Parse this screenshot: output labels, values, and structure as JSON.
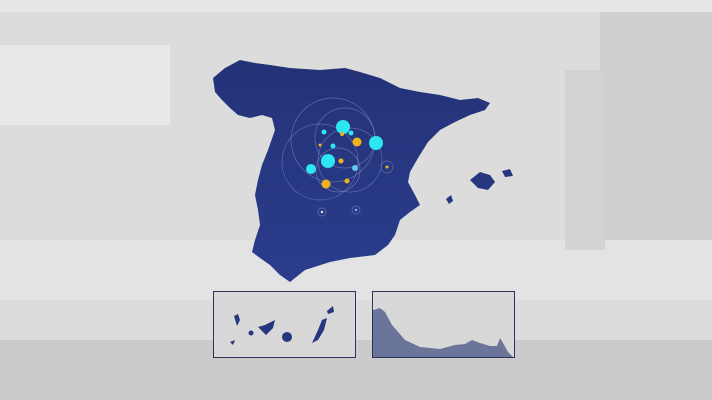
{
  "colors": {
    "background": "#dcdcdc",
    "land": "#26367f",
    "inset_land": "#6b7599",
    "marker_cyan": "#2ee6f0",
    "marker_orange": "#f2b21c",
    "marker_light_blue": "#6fc3ea",
    "inset_border": "#2a335e"
  },
  "map": {
    "region": "spain-mainland-and-balearics",
    "insets": [
      "canary-islands",
      "ceuta-melilla-coast"
    ]
  }
}
